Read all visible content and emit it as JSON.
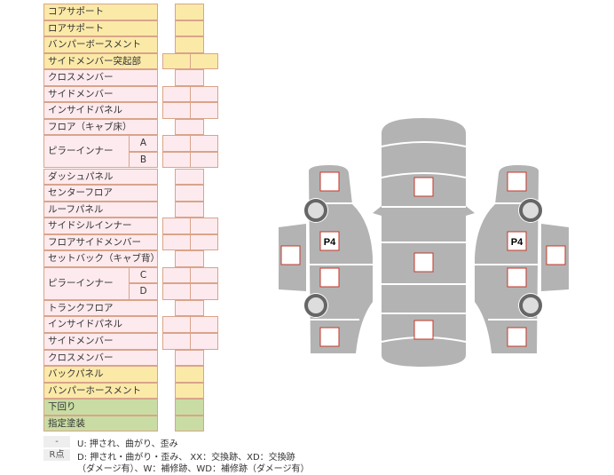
{
  "rows": [
    {
      "label": "コアサポート",
      "color": "y",
      "cells": 1
    },
    {
      "label": "ロアサポート",
      "color": "y",
      "cells": 1
    },
    {
      "label": "バンパーボースメント",
      "color": "y",
      "cells": 1
    },
    {
      "label": "サイドメンバー突起部",
      "color": "y",
      "cells": 2
    },
    {
      "label": "クロスメンバー",
      "color": "p",
      "cells": 1
    },
    {
      "label": "サイドメンバー",
      "color": "p",
      "cells": 2
    },
    {
      "label": "インサイドパネル",
      "color": "p",
      "cells": 2
    },
    {
      "label": "フロア（キャブ床）",
      "color": "p",
      "cells": 1
    },
    {
      "label": "ピラーインナー",
      "sub": "A",
      "color": "p",
      "cells": 2
    },
    {
      "label": "",
      "sub": "B",
      "color": "p",
      "cells": 2
    },
    {
      "label": "ダッシュパネル",
      "color": "p",
      "cells": 1
    },
    {
      "label": "センターフロア",
      "color": "p",
      "cells": 1
    },
    {
      "label": "ルーフパネル",
      "color": "p",
      "cells": 1
    },
    {
      "label": "サイドシルインナー",
      "color": "p",
      "cells": 2
    },
    {
      "label": "フロアサイドメンバー",
      "color": "p",
      "cells": 2
    },
    {
      "label": "セットバック（キャブ背）",
      "color": "p",
      "cells": 1
    },
    {
      "label": "ピラーインナー",
      "sub": "C",
      "color": "p",
      "cells": 2
    },
    {
      "label": "",
      "sub": "D",
      "color": "p",
      "cells": 2
    },
    {
      "label": "トランクフロア",
      "color": "p",
      "cells": 1
    },
    {
      "label": "インサイドパネル",
      "color": "p",
      "cells": 2
    },
    {
      "label": "サイドメンバー",
      "color": "p",
      "cells": 2
    },
    {
      "label": "クロスメンバー",
      "color": "p",
      "cells": 1
    },
    {
      "label": "バックパネル",
      "color": "y",
      "cells": 1
    },
    {
      "label": "バンパーホースメント",
      "color": "y",
      "cells": 1
    },
    {
      "label": "下回り",
      "color": "g",
      "cells": 1
    },
    {
      "label": "指定塗装",
      "color": "g",
      "cells": 1
    }
  ],
  "legend": [
    {
      "key": "-",
      "text": "U: 押され、曲がり、歪み"
    },
    {
      "key": "R点",
      "text": "D: 押され・曲がり・歪み、 XX：交換跡、XD：交換跡",
      "text2": "（ダメージ有）、W：補修跡、WD：補修跡（ダメージ有）"
    }
  ],
  "diagram": {
    "left_marker": "P4",
    "right_marker": "P4",
    "body_color": "#b3b3b3",
    "mark_color": "#c0392b"
  }
}
